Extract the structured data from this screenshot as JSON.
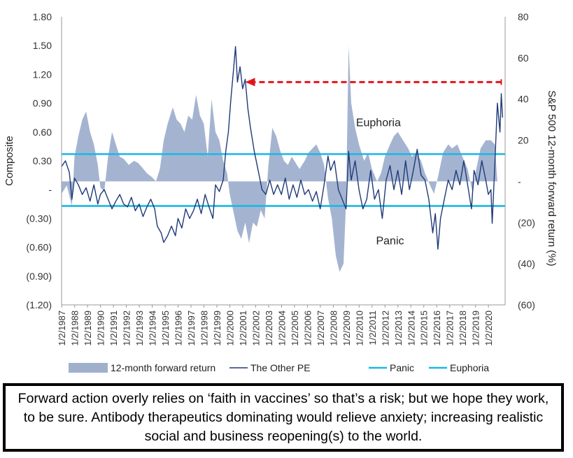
{
  "chart_data": {
    "type": "line",
    "y_left": {
      "label": "Composite",
      "range": [
        -1.2,
        1.8
      ],
      "ticks": [
        1.8,
        1.5,
        1.2,
        0.9,
        0.6,
        0.3,
        0,
        -0.3,
        -0.6,
        -0.9,
        -1.2
      ],
      "tick_labels": [
        "1.80",
        "1.50",
        "1.20",
        "0.90",
        "0.60",
        "0.30",
        "-",
        "(0.30)",
        "(0.60)",
        "(0.90)",
        "(1.20)"
      ]
    },
    "y_right": {
      "label": "S&P 500 12-month forward return (%)",
      "range": [
        -60,
        80
      ],
      "ticks": [
        80,
        60,
        40,
        20,
        0,
        -20,
        -40,
        -60
      ],
      "tick_labels": [
        "80",
        "60",
        "40",
        "20",
        "-",
        "(20)",
        "(40)",
        "(60)"
      ]
    },
    "x_labels": [
      "1/2/1987",
      "1/2/1988",
      "1/2/1989",
      "1/2/1990",
      "1/2/1991",
      "1/2/1992",
      "1/2/1993",
      "1/2/1994",
      "1/2/1995",
      "1/2/1996",
      "1/2/1997",
      "1/2/1998",
      "1/2/1999",
      "1/2/2000",
      "1/2/2001",
      "1/2/2002",
      "1/2/2003",
      "1/2/2004",
      "1/2/2005",
      "1/2/2006",
      "1/2/2007",
      "1/2/2008",
      "1/2/2009",
      "1/2/2010",
      "1/2/2011",
      "1/2/2012",
      "1/2/2013",
      "1/2/2014",
      "1/2/2015",
      "1/2/2016",
      "1/2/2017",
      "1/2/2018",
      "1/2/2019",
      "1/2/2020"
    ],
    "x_range": [
      1987.0,
      2021.3
    ],
    "series": [
      {
        "name": "12-month forward return",
        "kind": "area",
        "axis": "right",
        "color": "#9fb0cd",
        "points": [
          [
            1987.0,
            -6
          ],
          [
            1987.4,
            -2
          ],
          [
            1987.8,
            -12
          ],
          [
            1988.0,
            12
          ],
          [
            1988.3,
            22
          ],
          [
            1988.6,
            30
          ],
          [
            1988.9,
            34
          ],
          [
            1989.2,
            24
          ],
          [
            1989.5,
            18
          ],
          [
            1989.8,
            8
          ],
          [
            1990.0,
            -3
          ],
          [
            1990.3,
            -5
          ],
          [
            1990.6,
            12
          ],
          [
            1990.9,
            24
          ],
          [
            1991.2,
            18
          ],
          [
            1991.5,
            12
          ],
          [
            1991.8,
            11
          ],
          [
            1992.2,
            8
          ],
          [
            1992.6,
            10
          ],
          [
            1992.9,
            9
          ],
          [
            1993.2,
            7
          ],
          [
            1993.6,
            4
          ],
          [
            1994.0,
            2
          ],
          [
            1994.3,
            0
          ],
          [
            1994.6,
            6
          ],
          [
            1994.9,
            20
          ],
          [
            1995.2,
            28
          ],
          [
            1995.6,
            36
          ],
          [
            1995.9,
            30
          ],
          [
            1996.2,
            28
          ],
          [
            1996.5,
            24
          ],
          [
            1996.8,
            32
          ],
          [
            1997.1,
            30
          ],
          [
            1997.4,
            42
          ],
          [
            1997.7,
            32
          ],
          [
            1998.0,
            28
          ],
          [
            1998.3,
            12
          ],
          [
            1998.6,
            40
          ],
          [
            1998.9,
            24
          ],
          [
            1999.2,
            20
          ],
          [
            1999.5,
            10
          ],
          [
            1999.8,
            4
          ],
          [
            2000.0,
            -6
          ],
          [
            2000.3,
            -15
          ],
          [
            2000.6,
            -24
          ],
          [
            2000.9,
            -28
          ],
          [
            2001.2,
            -20
          ],
          [
            2001.5,
            -30
          ],
          [
            2001.8,
            -20
          ],
          [
            2002.1,
            -22
          ],
          [
            2002.4,
            -14
          ],
          [
            2002.7,
            -18
          ],
          [
            2003.0,
            8
          ],
          [
            2003.3,
            26
          ],
          [
            2003.6,
            22
          ],
          [
            2003.9,
            15
          ],
          [
            2004.2,
            10
          ],
          [
            2004.5,
            8
          ],
          [
            2004.8,
            12
          ],
          [
            2005.1,
            9
          ],
          [
            2005.4,
            6
          ],
          [
            2005.8,
            10
          ],
          [
            2006.1,
            14
          ],
          [
            2006.4,
            16
          ],
          [
            2006.7,
            18
          ],
          [
            2007.0,
            14
          ],
          [
            2007.3,
            8
          ],
          [
            2007.6,
            -8
          ],
          [
            2007.9,
            -18
          ],
          [
            2008.2,
            -36
          ],
          [
            2008.5,
            -44
          ],
          [
            2008.8,
            -40
          ],
          [
            2009.0,
            -10
          ],
          [
            2009.2,
            66
          ],
          [
            2009.4,
            38
          ],
          [
            2009.7,
            26
          ],
          [
            2010.0,
            18
          ],
          [
            2010.4,
            10
          ],
          [
            2010.7,
            14
          ],
          [
            2011.0,
            6
          ],
          [
            2011.4,
            0
          ],
          [
            2011.7,
            4
          ],
          [
            2012.0,
            12
          ],
          [
            2012.4,
            18
          ],
          [
            2012.7,
            22
          ],
          [
            2013.0,
            24
          ],
          [
            2013.4,
            20
          ],
          [
            2013.8,
            16
          ],
          [
            2014.1,
            12
          ],
          [
            2014.4,
            14
          ],
          [
            2014.8,
            10
          ],
          [
            2015.1,
            4
          ],
          [
            2015.5,
            -2
          ],
          [
            2015.8,
            -6
          ],
          [
            2016.1,
            2
          ],
          [
            2016.5,
            14
          ],
          [
            2016.9,
            18
          ],
          [
            2017.2,
            16
          ],
          [
            2017.6,
            18
          ],
          [
            2018.0,
            12
          ],
          [
            2018.4,
            6
          ],
          [
            2018.8,
            -6
          ],
          [
            2019.0,
            4
          ],
          [
            2019.4,
            16
          ],
          [
            2019.8,
            20
          ],
          [
            2020.2,
            20
          ],
          [
            2020.5,
            18
          ],
          [
            2020.7,
            0
          ]
        ]
      },
      {
        "name": "The Other PE",
        "kind": "line",
        "axis": "left",
        "color": "#1f3a78",
        "points": [
          [
            1987.0,
            0.24
          ],
          [
            1987.3,
            0.3
          ],
          [
            1987.6,
            0.18
          ],
          [
            1987.8,
            -0.1
          ],
          [
            1988.0,
            0.12
          ],
          [
            1988.3,
            0.05
          ],
          [
            1988.6,
            -0.05
          ],
          [
            1988.9,
            0.02
          ],
          [
            1989.2,
            -0.12
          ],
          [
            1989.5,
            0.05
          ],
          [
            1989.8,
            -0.15
          ],
          [
            1990.0,
            -0.05
          ],
          [
            1990.3,
            0.0
          ],
          [
            1990.6,
            -0.1
          ],
          [
            1990.9,
            -0.2
          ],
          [
            1991.2,
            -0.12
          ],
          [
            1991.5,
            -0.05
          ],
          [
            1991.8,
            -0.15
          ],
          [
            1992.1,
            -0.18
          ],
          [
            1992.4,
            -0.08
          ],
          [
            1992.7,
            -0.22
          ],
          [
            1993.0,
            -0.15
          ],
          [
            1993.3,
            -0.28
          ],
          [
            1993.6,
            -0.18
          ],
          [
            1993.9,
            -0.1
          ],
          [
            1994.2,
            -0.2
          ],
          [
            1994.4,
            -0.38
          ],
          [
            1994.7,
            -0.45
          ],
          [
            1994.9,
            -0.55
          ],
          [
            1995.2,
            -0.48
          ],
          [
            1995.5,
            -0.38
          ],
          [
            1995.8,
            -0.48
          ],
          [
            1996.0,
            -0.3
          ],
          [
            1996.3,
            -0.4
          ],
          [
            1996.6,
            -0.2
          ],
          [
            1996.9,
            -0.3
          ],
          [
            1997.2,
            -0.22
          ],
          [
            1997.5,
            -0.1
          ],
          [
            1997.8,
            -0.25
          ],
          [
            1998.1,
            -0.05
          ],
          [
            1998.4,
            -0.18
          ],
          [
            1998.7,
            -0.3
          ],
          [
            1998.9,
            0.05
          ],
          [
            1999.2,
            -0.02
          ],
          [
            1999.5,
            0.1
          ],
          [
            1999.7,
            0.4
          ],
          [
            1999.9,
            0.6
          ],
          [
            2000.1,
            0.95
          ],
          [
            2000.3,
            1.25
          ],
          [
            2000.45,
            1.49
          ],
          [
            2000.6,
            1.12
          ],
          [
            2000.8,
            1.28
          ],
          [
            2001.0,
            1.05
          ],
          [
            2001.2,
            1.15
          ],
          [
            2001.4,
            0.85
          ],
          [
            2001.6,
            0.65
          ],
          [
            2001.9,
            0.4
          ],
          [
            2002.2,
            0.2
          ],
          [
            2002.5,
            0.0
          ],
          [
            2002.8,
            -0.05
          ],
          [
            2003.1,
            0.1
          ],
          [
            2003.4,
            -0.05
          ],
          [
            2003.7,
            0.05
          ],
          [
            2004.0,
            -0.05
          ],
          [
            2004.3,
            0.12
          ],
          [
            2004.6,
            -0.1
          ],
          [
            2004.9,
            0.05
          ],
          [
            2005.2,
            -0.08
          ],
          [
            2005.5,
            0.1
          ],
          [
            2005.8,
            -0.05
          ],
          [
            2006.1,
            0.0
          ],
          [
            2006.4,
            -0.12
          ],
          [
            2006.7,
            -0.02
          ],
          [
            2007.0,
            -0.2
          ],
          [
            2007.3,
            0.05
          ],
          [
            2007.6,
            0.35
          ],
          [
            2007.8,
            0.2
          ],
          [
            2008.1,
            0.3
          ],
          [
            2008.4,
            0.0
          ],
          [
            2008.7,
            -0.1
          ],
          [
            2009.0,
            -0.2
          ],
          [
            2009.2,
            0.4
          ],
          [
            2009.4,
            0.1
          ],
          [
            2009.7,
            0.3
          ],
          [
            2010.0,
            0.0
          ],
          [
            2010.3,
            -0.2
          ],
          [
            2010.6,
            -0.1
          ],
          [
            2010.9,
            0.2
          ],
          [
            2011.2,
            -0.1
          ],
          [
            2011.5,
            0.0
          ],
          [
            2011.8,
            -0.3
          ],
          [
            2012.1,
            0.1
          ],
          [
            2012.4,
            0.25
          ],
          [
            2012.7,
            0.0
          ],
          [
            2013.0,
            0.2
          ],
          [
            2013.3,
            -0.05
          ],
          [
            2013.6,
            0.3
          ],
          [
            2013.9,
            0.0
          ],
          [
            2014.2,
            0.2
          ],
          [
            2014.5,
            0.42
          ],
          [
            2014.8,
            0.15
          ],
          [
            2015.1,
            0.1
          ],
          [
            2015.4,
            -0.1
          ],
          [
            2015.7,
            -0.45
          ],
          [
            2015.9,
            -0.25
          ],
          [
            2016.1,
            -0.62
          ],
          [
            2016.3,
            -0.3
          ],
          [
            2016.6,
            -0.1
          ],
          [
            2016.9,
            0.1
          ],
          [
            2017.2,
            0.0
          ],
          [
            2017.5,
            0.2
          ],
          [
            2017.8,
            0.05
          ],
          [
            2018.1,
            0.3
          ],
          [
            2018.4,
            0.05
          ],
          [
            2018.7,
            -0.2
          ],
          [
            2018.9,
            0.2
          ],
          [
            2019.2,
            0.05
          ],
          [
            2019.5,
            0.3
          ],
          [
            2019.8,
            0.1
          ],
          [
            2020.0,
            -0.05
          ],
          [
            2020.2,
            0.0
          ],
          [
            2020.3,
            -0.35
          ],
          [
            2020.5,
            0.25
          ],
          [
            2020.7,
            0.9
          ],
          [
            2020.9,
            0.6
          ],
          [
            2021.0,
            1.0
          ],
          [
            2021.1,
            0.75
          ]
        ]
      },
      {
        "name": "Panic",
        "kind": "hline",
        "axis": "left",
        "value": -0.17,
        "color": "#19b8e6"
      },
      {
        "name": "Euphoria",
        "kind": "hline",
        "axis": "left",
        "value": 0.37,
        "color": "#19b8e6"
      }
    ],
    "annotations": [
      {
        "text": "Euphoria",
        "x": 2011.5,
        "y": 0.66,
        "axis": "left"
      },
      {
        "text": "Panic",
        "x": 2012.4,
        "y": -0.57,
        "axis": "left"
      }
    ],
    "arrow": {
      "from": [
        2021.0,
        1.12
      ],
      "to": [
        2001.2,
        1.12
      ],
      "axis": "left",
      "color": "#e1161c"
    },
    "legend": {
      "placement": "bottom"
    },
    "grid": false
  },
  "caption": {
    "text": "Forward action overly relies on ‘faith in vaccines’ so that’s a risk; but we hope they work, to be sure. Antibody therapeutics dominating would relieve anxiety; increasing realistic social and business reopening(s) to the world."
  }
}
